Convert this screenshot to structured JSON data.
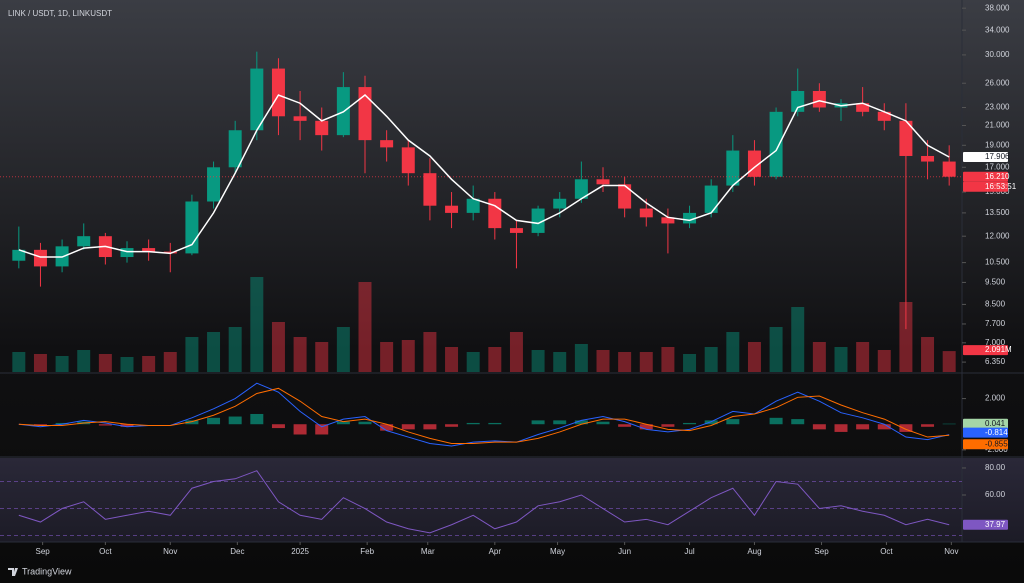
{
  "chart_data": {
    "type": "candlestick",
    "title": "LINK / USDT, 1D, LINKUSDT",
    "log_scale": true,
    "grid": false,
    "up_color": "#089981",
    "down_color": "#f23645",
    "xlim": [
      0,
      44
    ],
    "xticks": [
      {
        "value": 1.6,
        "label": "Sep"
      },
      {
        "value": 4.5,
        "label": "Oct"
      },
      {
        "value": 7.5,
        "label": "Nov"
      },
      {
        "value": 10.6,
        "label": "Dec"
      },
      {
        "value": 13.5,
        "label": "2025"
      },
      {
        "value": 16.6,
        "label": "Feb"
      },
      {
        "value": 19.4,
        "label": "Mar"
      },
      {
        "value": 22.5,
        "label": "Apr"
      },
      {
        "value": 25.4,
        "label": "May"
      },
      {
        "value": 28.5,
        "label": "Jun"
      },
      {
        "value": 31.5,
        "label": "Jul"
      },
      {
        "value": 34.5,
        "label": "Aug"
      },
      {
        "value": 37.6,
        "label": "Sep"
      },
      {
        "value": 40.6,
        "label": "Oct"
      },
      {
        "value": 43.6,
        "label": "Nov"
      }
    ],
    "ylim": [
      6.04,
      39.6
    ],
    "yticks": [
      {
        "value": 38,
        "label": "38.000"
      },
      {
        "value": 34,
        "label": "34.000"
      },
      {
        "value": 30,
        "label": "30.000"
      },
      {
        "value": 26,
        "label": "26.000"
      },
      {
        "value": 23,
        "label": "23.000"
      },
      {
        "value": 21,
        "label": "21.000"
      },
      {
        "value": 19,
        "label": "19.000"
      },
      {
        "value": 17,
        "label": "17.000"
      },
      {
        "value": 15,
        "label": "15.000"
      },
      {
        "value": 13.5,
        "label": "13.500"
      },
      {
        "value": 12,
        "label": "12.000"
      },
      {
        "value": 10.5,
        "label": "10.500"
      },
      {
        "value": 9.5,
        "label": "9.500"
      },
      {
        "value": 8.5,
        "label": "8.500"
      },
      {
        "value": 7.7,
        "label": "7.700"
      },
      {
        "value": 7,
        "label": "7.000"
      },
      {
        "value": 6.35,
        "label": "6.350"
      }
    ],
    "open": [
      10.6,
      11.2,
      10.3,
      11.4,
      12.0,
      10.8,
      11.3,
      11.1,
      11.0,
      14.3,
      17.0,
      20.5,
      28.0,
      22.0,
      21.5,
      20.0,
      25.5,
      19.5,
      18.8,
      16.5,
      14.0,
      13.5,
      14.5,
      12.5,
      12.2,
      13.8,
      14.5,
      16.0,
      15.6,
      13.8,
      13.2,
      12.8,
      13.5,
      15.5,
      18.5,
      16.2,
      22.5,
      25.0,
      23.0,
      23.5,
      22.5,
      21.5,
      18.0,
      17.5
    ],
    "high": [
      12.6,
      11.6,
      11.8,
      12.8,
      12.2,
      11.7,
      11.8,
      11.6,
      14.8,
      17.5,
      21.5,
      30.5,
      29.5,
      25.0,
      23.0,
      27.5,
      27.0,
      20.5,
      19.5,
      17.8,
      15.0,
      15.5,
      15.0,
      13.0,
      14.0,
      15.0,
      17.5,
      17.0,
      16.2,
      14.5,
      13.8,
      14.0,
      16.0,
      20.0,
      19.5,
      23.0,
      28.0,
      26.0,
      24.0,
      25.5,
      23.5,
      23.5,
      19.5,
      19.0
    ],
    "low": [
      10.2,
      9.3,
      10.0,
      11.2,
      10.4,
      10.5,
      10.6,
      10.0,
      10.9,
      13.8,
      16.5,
      19.5,
      20.0,
      19.5,
      18.5,
      19.8,
      16.5,
      17.5,
      15.5,
      13.0,
      12.5,
      13.0,
      11.8,
      10.2,
      12.0,
      13.2,
      14.2,
      15.0,
      13.2,
      12.6,
      11.0,
      12.5,
      13.2,
      15.0,
      15.5,
      16.0,
      22.0,
      22.5,
      21.5,
      22.0,
      20.5,
      7.5,
      16.0,
      15.5
    ],
    "close": [
      11.2,
      10.3,
      11.4,
      12.0,
      10.8,
      11.3,
      11.1,
      11.0,
      14.3,
      17.0,
      20.5,
      28.0,
      22.0,
      21.5,
      20.0,
      25.5,
      19.5,
      18.8,
      16.5,
      14.0,
      13.5,
      14.5,
      12.5,
      12.2,
      13.8,
      14.5,
      16.0,
      15.6,
      13.8,
      13.2,
      12.8,
      13.5,
      15.5,
      18.5,
      16.2,
      22.5,
      25.0,
      23.0,
      23.5,
      22.5,
      21.5,
      18.0,
      17.5,
      16.21
    ],
    "price_last_label": "16.210",
    "countdown": "16:53:51",
    "sma": {
      "color": "#ffffff",
      "values": [
        11.2,
        10.8,
        10.8,
        11.3,
        11.4,
        11.1,
        11.1,
        11.0,
        11.5,
        13.5,
        16.5,
        20.5,
        24.5,
        23.5,
        21.5,
        22.5,
        24.5,
        22.0,
        19.5,
        18.0,
        16.0,
        14.5,
        14.0,
        13.0,
        12.8,
        13.5,
        14.5,
        15.5,
        15.5,
        14.2,
        13.2,
        13.0,
        13.5,
        15.5,
        17.0,
        18.5,
        23.0,
        23.8,
        23.2,
        23.5,
        22.5,
        21.5,
        19.0,
        17.906
      ],
      "last_label": "17.906"
    },
    "volume": {
      "ylim": [
        0,
        12
      ],
      "values": [
        2,
        1.8,
        1.6,
        2.2,
        1.8,
        1.5,
        1.6,
        2.0,
        3.5,
        4.0,
        4.5,
        9.5,
        5.0,
        3.5,
        3.0,
        4.5,
        9.0,
        3.0,
        3.2,
        4.0,
        2.5,
        2.0,
        2.5,
        4.0,
        2.2,
        2.0,
        2.8,
        2.2,
        2.0,
        2.0,
        2.5,
        1.8,
        2.5,
        4.0,
        3.0,
        4.5,
        6.5,
        3.0,
        2.5,
        3.0,
        2.2,
        7.0,
        3.5,
        2.091
      ],
      "last_label": "2.091M"
    },
    "macd": {
      "ylim": [
        -2.4,
        3.84
      ],
      "yticks": [
        {
          "value": 2,
          "label": "2.000"
        },
        {
          "value": -2,
          "label": "-2.000"
        }
      ],
      "macd": {
        "color": "#2962ff",
        "values": [
          0,
          -0.2,
          0,
          0.3,
          0.1,
          -0.2,
          -0.1,
          -0.1,
          0.5,
          1.2,
          2.0,
          3.2,
          2.5,
          1.0,
          -0.2,
          0.4,
          0.6,
          -0.5,
          -1.0,
          -1.5,
          -1.7,
          -1.4,
          -1.3,
          -1.4,
          -0.8,
          -0.3,
          0.3,
          0.6,
          0.2,
          -0.4,
          -0.6,
          -0.4,
          0.2,
          1.0,
          0.8,
          1.8,
          2.5,
          1.8,
          0.9,
          0.5,
          0,
          -1.0,
          -1.2,
          -0.814
        ],
        "last_label": "-0.814"
      },
      "signal": {
        "color": "#ff6d00",
        "values": [
          0,
          -0.1,
          -0.1,
          0.1,
          0.2,
          0,
          -0.1,
          -0.1,
          0.2,
          0.7,
          1.4,
          2.4,
          2.8,
          1.8,
          0.6,
          0.2,
          0.4,
          0,
          -0.6,
          -1.1,
          -1.5,
          -1.5,
          -1.4,
          -1.4,
          -1.1,
          -0.6,
          0,
          0.4,
          0.4,
          0,
          -0.4,
          -0.5,
          -0.1,
          0.6,
          0.8,
          1.3,
          2.1,
          2.2,
          1.5,
          0.9,
          0.4,
          -0.4,
          -1.0,
          -0.855
        ],
        "last_label": "-0.855"
      },
      "histogram": {
        "values": [
          0,
          -0.1,
          0.1,
          0.2,
          -0.1,
          -0.2,
          0,
          0,
          0.3,
          0.5,
          0.6,
          0.8,
          -0.3,
          -0.8,
          -0.8,
          0.2,
          0.2,
          -0.5,
          -0.4,
          -0.4,
          -0.2,
          0.1,
          0.1,
          0,
          0.3,
          0.3,
          0.3,
          0.2,
          -0.2,
          -0.4,
          -0.2,
          0.1,
          0.3,
          0.4,
          0,
          0.5,
          0.4,
          -0.4,
          -0.6,
          -0.4,
          -0.4,
          -0.6,
          -0.2,
          0.041
        ],
        "last_label": "0.041"
      }
    },
    "rsi": {
      "color": "#7e57c2",
      "ylim": [
        26.7,
        85.9
      ],
      "yticks": [
        {
          "value": 80,
          "label": "80.00"
        },
        {
          "value": 60,
          "label": "60.00"
        }
      ],
      "bands": [
        70,
        50,
        30
      ],
      "values": [
        45,
        40,
        50,
        55,
        42,
        45,
        48,
        45,
        65,
        70,
        72,
        78,
        55,
        45,
        42,
        58,
        50,
        40,
        35,
        32,
        38,
        45,
        35,
        40,
        52,
        55,
        60,
        50,
        40,
        42,
        38,
        48,
        58,
        65,
        45,
        70,
        68,
        50,
        52,
        48,
        45,
        38,
        42,
        37.97
      ],
      "last_label": "37.97"
    },
    "brand": "TradingView"
  }
}
